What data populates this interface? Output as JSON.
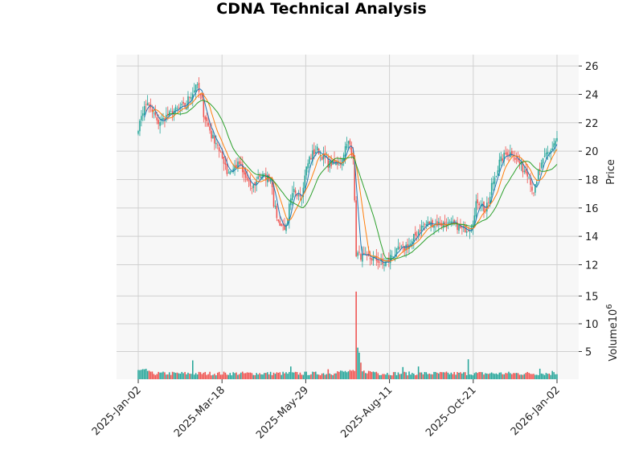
{
  "chart_data": {
    "type": "candlestick",
    "title": "CDNA Technical Analysis",
    "ylabel": "Price",
    "volume_label": "Volume",
    "volume_exponent": "10",
    "volume_exponent_power": "6",
    "price_ticks": [
      12,
      14,
      16,
      18,
      20,
      22,
      24,
      26
    ],
    "price_tick_labels": [
      "12",
      "14",
      "16",
      "18",
      "20",
      "22",
      "24",
      "26"
    ],
    "volume_ticks": [
      5,
      10,
      15
    ],
    "volume_tick_labels": [
      "5",
      "10",
      "15"
    ],
    "x_ticks": [
      "2025-Jan-02",
      "2025-Mar-18",
      "2025-May-29",
      "2025-Aug-11",
      "2025-Oct-21",
      "2026-Jan-02"
    ],
    "ylim": [
      10.5,
      26.8
    ],
    "volume_ylim": [
      0,
      16.8
    ],
    "colors": {
      "up": "#26a69a",
      "down": "#ef5350",
      "ma_fast": "#1f77b4",
      "ma_mid": "#ff7f0e",
      "ma_slow": "#2ca02c",
      "panel_bg": "#f7f7f7"
    },
    "close_anchors": [
      [
        "2025-01-02",
        21.7
      ],
      [
        "2025-01-10",
        23.5
      ],
      [
        "2025-01-20",
        22.0
      ],
      [
        "2025-02-03",
        22.8
      ],
      [
        "2025-02-14",
        23.2
      ],
      [
        "2025-02-24",
        24.8
      ],
      [
        "2025-02-28",
        23.5
      ],
      [
        "2025-03-07",
        21.5
      ],
      [
        "2025-03-14",
        20.5
      ],
      [
        "2025-03-24",
        18.5
      ],
      [
        "2025-04-03",
        19.1
      ],
      [
        "2025-04-14",
        17.3
      ],
      [
        "2025-04-21",
        18.3
      ],
      [
        "2025-05-01",
        18.1
      ],
      [
        "2025-05-08",
        15.0
      ],
      [
        "2025-05-15",
        14.6
      ],
      [
        "2025-05-22",
        17.2
      ],
      [
        "2025-05-29",
        17.0
      ],
      [
        "2025-06-05",
        19.5
      ],
      [
        "2025-06-12",
        20.1
      ],
      [
        "2025-06-23",
        19.1
      ],
      [
        "2025-07-03",
        19.2
      ],
      [
        "2025-07-10",
        20.6
      ],
      [
        "2025-07-15",
        19.8
      ],
      [
        "2025-07-17",
        12.8
      ],
      [
        "2025-07-25",
        12.5
      ],
      [
        "2025-08-04",
        12.4
      ],
      [
        "2025-08-11",
        12.0
      ],
      [
        "2025-08-22",
        12.9
      ],
      [
        "2025-09-05",
        13.5
      ],
      [
        "2025-09-12",
        14.5
      ],
      [
        "2025-09-19",
        14.9
      ],
      [
        "2025-10-01",
        14.9
      ],
      [
        "2025-10-14",
        14.8
      ],
      [
        "2025-10-21",
        14.5
      ],
      [
        "2025-10-28",
        14.6
      ],
      [
        "2025-11-04",
        16.5
      ],
      [
        "2025-11-11",
        15.8
      ],
      [
        "2025-11-21",
        18.8
      ],
      [
        "2025-11-28",
        19.8
      ],
      [
        "2025-12-05",
        19.9
      ],
      [
        "2025-12-12",
        19.0
      ],
      [
        "2025-12-19",
        18.4
      ],
      [
        "2025-12-24",
        17.2
      ],
      [
        "2026-01-02",
        19.5
      ],
      [
        "2026-01-09",
        20.2
      ],
      [
        "2026-01-14",
        20.8
      ]
    ],
    "volume_spikes": [
      [
        "2025-07-17",
        15.8
      ],
      [
        "2025-07-18",
        5.7
      ],
      [
        "2025-07-21",
        4.8
      ],
      [
        "2025-07-22",
        3.0
      ],
      [
        "2025-02-20",
        3.4
      ],
      [
        "2025-05-20",
        2.3
      ],
      [
        "2025-10-27",
        3.6
      ],
      [
        "2025-12-30",
        1.9
      ],
      [
        "2025-06-23",
        1.8
      ],
      [
        "2025-08-28",
        2.2
      ],
      [
        "2025-09-11",
        2.3
      ],
      [
        "2026-01-09",
        1.5
      ]
    ],
    "moving_averages": [
      {
        "window": 5,
        "color_key": "ma_fast"
      },
      {
        "window": 10,
        "color_key": "ma_mid"
      },
      {
        "window": 20,
        "color_key": "ma_slow"
      }
    ]
  }
}
